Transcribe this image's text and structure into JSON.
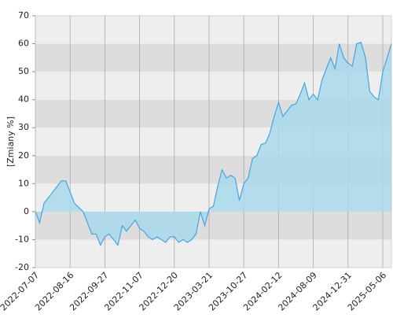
{
  "chart_data": {
    "type": "area",
    "y_label": "[Zmiany %]",
    "categories": [
      "2022-07-07",
      null,
      null,
      null,
      null,
      null,
      null,
      null,
      "2022-08-16",
      null,
      null,
      null,
      null,
      null,
      null,
      null,
      "2022-09-27",
      null,
      null,
      null,
      null,
      null,
      null,
      null,
      "2022-11-07",
      null,
      null,
      null,
      null,
      null,
      null,
      null,
      "2022-12-20",
      null,
      null,
      null,
      null,
      null,
      null,
      null,
      "2023-03-21",
      null,
      null,
      null,
      null,
      null,
      null,
      null,
      "2023-10-27",
      null,
      null,
      null,
      null,
      null,
      null,
      null,
      "2024-02-12",
      null,
      null,
      null,
      null,
      null,
      null,
      null,
      "2024-08-09",
      null,
      null,
      null,
      null,
      null,
      null,
      null,
      "2024-12-31",
      null,
      null,
      null,
      null,
      null,
      null,
      null,
      "2025-05-06",
      null,
      null
    ],
    "values": [
      0,
      -4,
      3,
      5,
      7,
      9,
      11,
      11,
      7,
      3,
      1.5,
      0,
      -4,
      -8,
      -8,
      -12,
      -9,
      -8,
      -10,
      -12,
      -5,
      -7,
      -5,
      -3,
      -6,
      -7,
      -9,
      -10,
      -9,
      -10,
      -11,
      -9,
      -9,
      -11,
      -10,
      -11,
      -10,
      -8,
      0,
      -5,
      1,
      2,
      9,
      15,
      12,
      13,
      12,
      4,
      10,
      12,
      19,
      20,
      24,
      24.5,
      28,
      34,
      39,
      34,
      36,
      38,
      38.5,
      42,
      46,
      40,
      42,
      40,
      47,
      51,
      55,
      51,
      60,
      55,
      53,
      52,
      60,
      60.5,
      55,
      43,
      41,
      40,
      50,
      55,
      60
    ],
    "color": "#4aa3df",
    "fill_color": "#a8d8ec",
    "ylim": [
      -20,
      70
    ],
    "yticks": [
      -20,
      -10,
      0,
      10,
      20,
      30,
      40,
      50,
      60,
      70
    ],
    "band_colors": [
      "#eeeeee",
      "#dddddd"
    ],
    "grid": true
  }
}
